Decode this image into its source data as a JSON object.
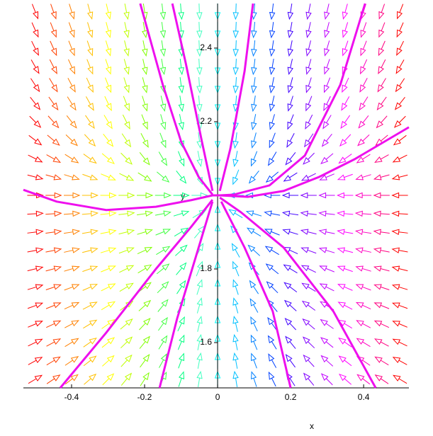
{
  "chart_data": {
    "type": "direction-field",
    "x_label": "x",
    "y_label": "y",
    "xlim": [
      -0.532,
      0.524
    ],
    "ylim": [
      1.477,
      2.521
    ],
    "xticks": [
      -0.4,
      -0.2,
      0,
      0.2,
      0.4
    ],
    "yticks": [
      1.6,
      1.8,
      2.2,
      2.4
    ],
    "field": {
      "x": [
        -0.5,
        -0.45,
        -0.4,
        -0.35,
        -0.3,
        -0.25,
        -0.2,
        -0.15,
        -0.1,
        -0.05,
        0,
        0.05,
        0.1,
        0.15,
        0.2,
        0.25,
        0.3,
        0.35,
        0.4,
        0.45,
        0.5
      ],
      "u": [
        0.5,
        0.45,
        0.4,
        0.35,
        0.3,
        0.25,
        0.2,
        0.15,
        0.1,
        0.05,
        0,
        -0.05,
        -0.1,
        -0.15,
        -0.2,
        -0.25,
        -0.3,
        -0.35,
        -0.4,
        -0.45,
        -0.5
      ],
      "y": [
        1.5,
        1.55,
        1.6,
        1.65,
        1.7,
        1.75,
        1.8,
        1.85,
        1.9,
        1.95,
        2,
        2.05,
        2.1,
        2.15,
        2.2,
        2.25,
        2.3,
        2.35,
        2.4,
        2.45,
        2.5
      ],
      "v": [
        0.3,
        0.27,
        0.24,
        0.21,
        0.18,
        0.15,
        0.12,
        0.09,
        0.06,
        0.03,
        0,
        -0.125,
        -0.25,
        -0.375,
        -0.5,
        -0.625,
        -0.75,
        -0.875,
        -1,
        -1.125,
        -1.25
      ],
      "column_colors": [
        "#ff0000",
        "#ff4000",
        "#ff8000",
        "#ffc000",
        "#ffff00",
        "#c0ff00",
        "#80ff00",
        "#40ff40",
        "#00ff80",
        "#40ffc0",
        "#00ffff",
        "#00c0ff",
        "#0080ff",
        "#0040ff",
        "#4000ff",
        "#8000ff",
        "#c000ff",
        "#ff00ff",
        "#ff00c0",
        "#ff0080",
        "#ff0000"
      ]
    },
    "series": [
      {
        "color": "#ee10ee",
        "x": [
          -0.212,
          -0.15,
          -0.1,
          -0.052,
          -0.014
        ],
        "y": [
          2.521,
          2.3,
          2.146,
          2.05,
          2.002
        ]
      },
      {
        "color": "#ee10ee",
        "x": [
          0.404,
          0.336,
          0.239,
          0.142,
          0.045,
          0.006
        ],
        "y": [
          2.521,
          2.3,
          2.108,
          2.027,
          2.002,
          2.0
        ]
      },
      {
        "color": "#ee10ee",
        "x": [
          -0.124,
          -0.087,
          -0.043,
          -0.014
        ],
        "y": [
          2.521,
          2.358,
          2.146,
          2.012
        ]
      },
      {
        "color": "#ee10ee",
        "x": [
          0.097,
          0.074,
          0.035,
          0.006
        ],
        "y": [
          2.521,
          2.338,
          2.127,
          2.012
        ]
      },
      {
        "color": "#ee10ee",
        "x": [
          -0.532,
          -0.441,
          -0.305,
          -0.169,
          -0.072,
          -0.014,
          0.006,
          0.083,
          0.181,
          0.278,
          0.375,
          0.524
        ],
        "y": [
          2.015,
          1.983,
          1.96,
          1.969,
          1.987,
          2.0,
          2.0,
          1.996,
          2.012,
          2.05,
          2.098,
          2.185
        ]
      },
      {
        "color": "#ee10ee",
        "x": [
          -0.431,
          -0.305,
          -0.169,
          -0.072,
          -0.014
        ],
        "y": [
          1.477,
          1.627,
          1.8,
          1.915,
          1.988
        ]
      },
      {
        "color": "#ee10ee",
        "x": [
          -0.159,
          -0.111,
          -0.052,
          -0.014
        ],
        "y": [
          1.477,
          1.665,
          1.858,
          1.983
        ]
      },
      {
        "color": "#ee10ee",
        "x": [
          0.2,
          0.151,
          0.074,
          0.01
        ],
        "y": [
          1.477,
          1.685,
          1.858,
          1.983
        ]
      },
      {
        "color": "#ee10ee",
        "x": [
          0.433,
          0.317,
          0.181,
          0.064,
          0.006
        ],
        "y": [
          1.477,
          1.685,
          1.858,
          1.954,
          1.994
        ]
      }
    ]
  }
}
